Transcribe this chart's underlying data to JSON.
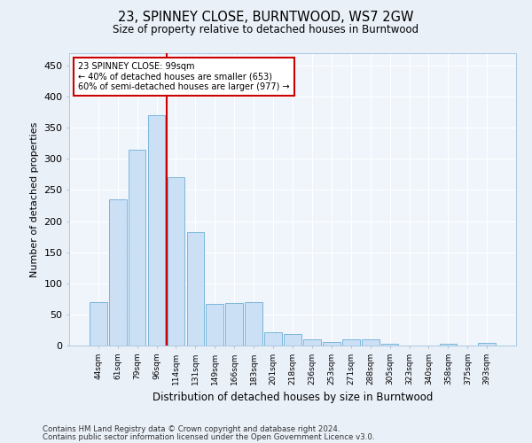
{
  "title1": "23, SPINNEY CLOSE, BURNTWOOD, WS7 2GW",
  "title2": "Size of property relative to detached houses in Burntwood",
  "xlabel": "Distribution of detached houses by size in Burntwood",
  "ylabel": "Number of detached properties",
  "categories": [
    "44sqm",
    "61sqm",
    "79sqm",
    "96sqm",
    "114sqm",
    "131sqm",
    "149sqm",
    "166sqm",
    "183sqm",
    "201sqm",
    "218sqm",
    "236sqm",
    "253sqm",
    "271sqm",
    "288sqm",
    "305sqm",
    "323sqm",
    "340sqm",
    "358sqm",
    "375sqm",
    "393sqm"
  ],
  "values": [
    70,
    235,
    315,
    370,
    270,
    182,
    67,
    68,
    70,
    22,
    19,
    10,
    6,
    10,
    10,
    3,
    0,
    0,
    3,
    0,
    4
  ],
  "bar_color": "#cce0f5",
  "bar_edge_color": "#6aaed6",
  "vline_x_index": 3.5,
  "vline_color": "#cc0000",
  "annotation_text": "23 SPINNEY CLOSE: 99sqm\n← 40% of detached houses are smaller (653)\n60% of semi-detached houses are larger (977) →",
  "annotation_box_color": "white",
  "annotation_box_edge_color": "#cc0000",
  "ylim": [
    0,
    470
  ],
  "yticks": [
    0,
    50,
    100,
    150,
    200,
    250,
    300,
    350,
    400,
    450
  ],
  "footer1": "Contains HM Land Registry data © Crown copyright and database right 2024.",
  "footer2": "Contains public sector information licensed under the Open Government Licence v3.0.",
  "bg_color": "#eaf0f8",
  "plot_bg_color": "#f0f5fc"
}
